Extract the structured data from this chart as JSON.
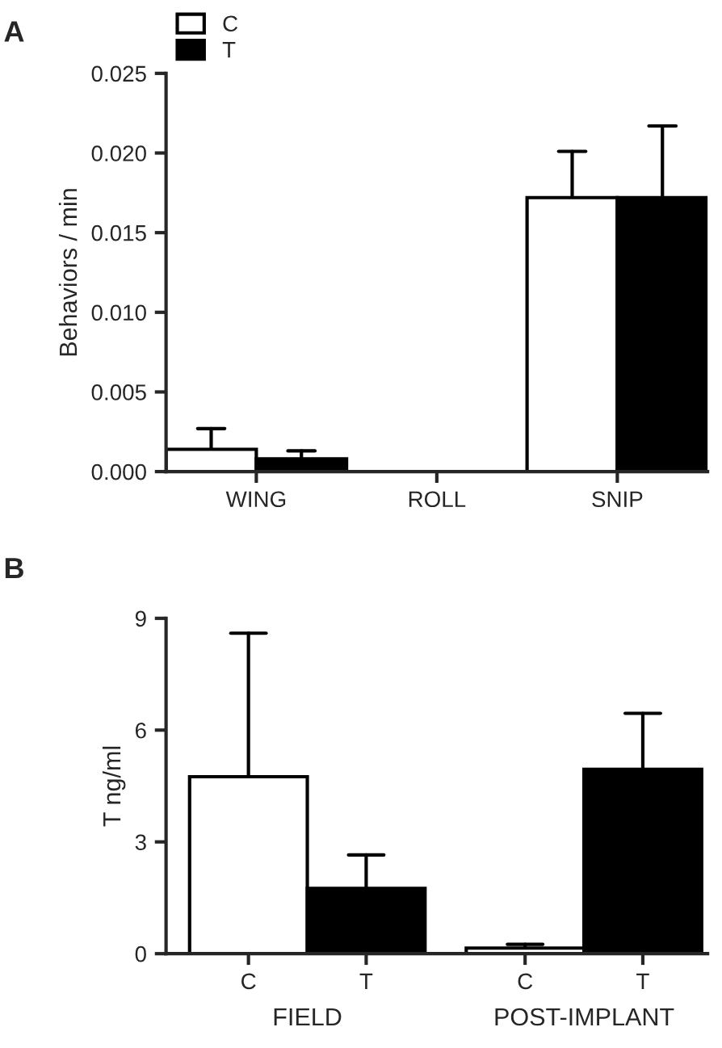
{
  "chart_data": [
    {
      "type": "bar",
      "title": "A",
      "ylabel": "Behaviors / min",
      "categories": [
        "WING",
        "ROLL",
        "SNIP"
      ],
      "series": [
        {
          "name": "C",
          "color": "#ffffff",
          "values": [
            0.0014,
            0,
            0.0172
          ],
          "errors": [
            [
              0.0014,
              0.0027
            ],
            null,
            [
              0.0172,
              0.0201
            ]
          ]
        },
        {
          "name": "T",
          "color": "#000000",
          "values": [
            0.0008,
            0,
            0.0172
          ],
          "errors": [
            [
              0.0008,
              0.0013
            ],
            null,
            [
              0.0172,
              0.0217
            ]
          ]
        }
      ],
      "ylim": [
        0,
        0.025
      ],
      "yticks": [
        {
          "value": 0,
          "label": "0.000"
        },
        {
          "value": 0.005,
          "label": "0.005"
        },
        {
          "value": 0.01,
          "label": "0.010"
        },
        {
          "value": 0.015,
          "label": "0.015"
        },
        {
          "value": 0.02,
          "label": "0.020"
        },
        {
          "value": 0.025,
          "label": "0.025"
        }
      ],
      "legend": "top left",
      "grid": false
    },
    {
      "type": "bar",
      "title": "B",
      "ylabel": "T ng/ml",
      "categories": [
        "C",
        "T",
        "C",
        "T"
      ],
      "values": [
        4.75,
        1.75,
        0.15,
        4.95
      ],
      "colors": [
        "#ffffff",
        "#000000",
        "#ffffff",
        "#000000"
      ],
      "errors": [
        [
          4.75,
          8.6
        ],
        [
          1.75,
          2.65
        ],
        [
          0.15,
          0.25
        ],
        [
          4.95,
          6.45
        ]
      ],
      "annotations": [
        "FIELD",
        "POST-IMPLANT"
      ],
      "ylim": [
        0,
        9
      ],
      "yticks": [
        0,
        3,
        6,
        9
      ],
      "grid": false
    }
  ]
}
